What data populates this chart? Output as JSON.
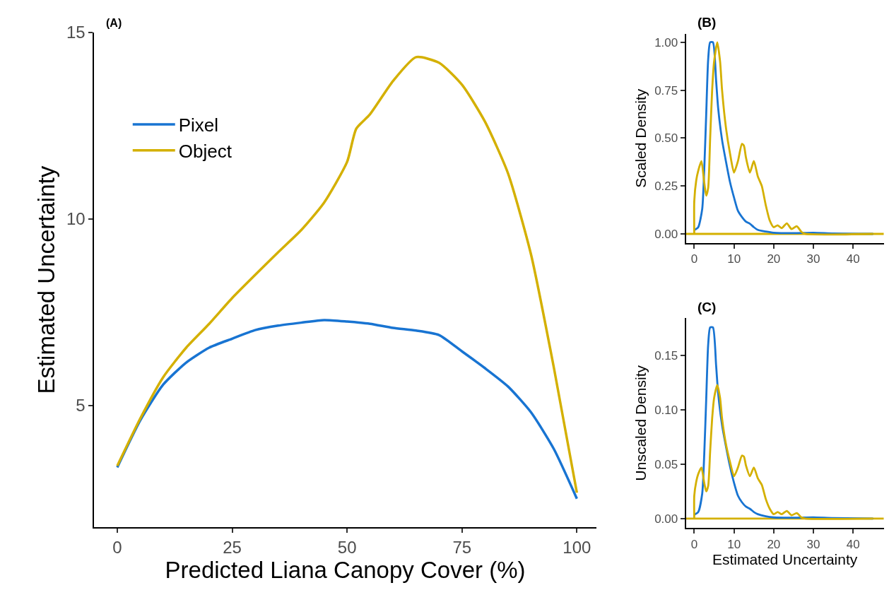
{
  "chart_data": [
    {
      "type": "line",
      "title": "(A)",
      "xlabel": "Predicted Liana Canopy Cover (%)",
      "ylabel": "Estimated Uncertainty",
      "xlim": [
        -5,
        104.2
      ],
      "ylim": [
        1.73,
        15
      ],
      "xticks": [
        0,
        25,
        50,
        75,
        100
      ],
      "yticks": [
        5,
        10,
        15
      ],
      "grid": false,
      "legend": "top left",
      "marker": "none",
      "line_style": "solid",
      "series": [
        {
          "name": "Pixel",
          "color": "#1874d2",
          "x": [
            0,
            5,
            10,
            15,
            20,
            25,
            30,
            35,
            40,
            45,
            50,
            55,
            60,
            65,
            70,
            75,
            80,
            85,
            90,
            95,
            100
          ],
          "values": [
            3.34,
            4.6,
            5.56,
            6.15,
            6.55,
            6.79,
            7.02,
            7.14,
            7.22,
            7.29,
            7.25,
            7.19,
            7.08,
            7.01,
            6.89,
            6.45,
            6.0,
            5.51,
            4.82,
            3.83,
            2.5
          ]
        },
        {
          "name": "Object",
          "color": "#d4b000",
          "x": [
            0,
            5,
            10,
            15,
            20,
            25,
            30,
            35,
            40,
            45,
            50,
            52,
            55,
            60,
            65,
            70,
            75,
            80,
            85,
            90,
            95,
            100
          ],
          "values": [
            3.38,
            4.65,
            5.76,
            6.55,
            7.19,
            7.88,
            8.5,
            9.11,
            9.7,
            10.44,
            11.53,
            12.42,
            12.81,
            13.7,
            14.34,
            14.19,
            13.6,
            12.61,
            11.23,
            9.06,
            6.01,
            2.66
          ]
        }
      ]
    },
    {
      "type": "line",
      "title": "(B)",
      "ylabel": "Scaled Density",
      "xlim": [
        -2.1,
        47.7
      ],
      "ylim": [
        -0.047,
        1.045
      ],
      "xticks": [
        0,
        10,
        20,
        30,
        40
      ],
      "yticks": [
        "1.00",
        {
          "value": 0.75,
          "label": "0.75"
        },
        {
          "value": 0.5,
          "label": "0.50"
        },
        {
          "value": 0.25,
          "label": "0.25"
        },
        {
          "value": 0,
          "label": "0.00"
        }
      ],
      "grid": false,
      "marker": "none",
      "line_style": "solid",
      "series": [
        {
          "color": "#1874d2",
          "x": [
            0,
            1,
            2,
            2.5,
            3,
            3.5,
            4,
            4.7,
            5.5,
            6,
            7,
            8,
            9,
            10,
            11,
            12,
            13,
            14,
            15,
            16,
            18,
            20,
            25,
            30,
            35,
            45
          ],
          "values": [
            0.02,
            0.035,
            0.13,
            0.33,
            0.62,
            0.91,
            1.0,
            1.0,
            0.8,
            0.66,
            0.49,
            0.375,
            0.27,
            0.19,
            0.12,
            0.088,
            0.064,
            0.053,
            0.035,
            0.021,
            0.012,
            0.006,
            0.004,
            0.006,
            0.002,
            0
          ]
        },
        {
          "color": "#d4b000",
          "x": [
            0,
            0,
            0.5,
            1,
            1.8,
            2.5,
            3,
            3.5,
            4,
            4.5,
            5,
            5.8,
            6.5,
            7,
            8,
            9,
            10,
            11,
            12,
            12.5,
            13,
            14,
            15,
            16,
            17,
            18,
            19,
            20,
            21,
            22,
            23.3,
            24.5,
            25.8,
            27,
            28,
            45
          ],
          "values": [
            0,
            0.17,
            0.28,
            0.33,
            0.38,
            0.27,
            0.2,
            0.24,
            0.5,
            0.75,
            0.9,
            1.0,
            0.9,
            0.75,
            0.55,
            0.42,
            0.32,
            0.38,
            0.47,
            0.46,
            0.4,
            0.32,
            0.38,
            0.3,
            0.25,
            0.15,
            0.07,
            0.035,
            0.045,
            0.03,
            0.055,
            0.025,
            0.04,
            0.01,
            0,
            0
          ]
        }
      ],
      "ref_lines": [
        {
          "axis": "y",
          "value": 0,
          "color": "#d4b000"
        }
      ]
    },
    {
      "type": "line",
      "title": "(C)",
      "xlabel": "Estimated Uncertainty",
      "ylabel": "Unscaled Density",
      "xlim": [
        -2.1,
        47.7
      ],
      "ylim": [
        -0.0087,
        0.1845
      ],
      "xticks": [
        0,
        10,
        20,
        30,
        40
      ],
      "yticks": [
        {
          "value": 0,
          "label": "0.00"
        },
        0.05,
        {
          "value": 0.1,
          "label": "0.10"
        },
        0.15
      ],
      "grid": false,
      "marker": "none",
      "line_style": "solid",
      "series": [
        {
          "color": "#1874d2",
          "x": [
            0,
            1,
            2,
            2.5,
            3,
            3.5,
            4,
            4.7,
            5.5,
            6,
            7,
            8,
            9,
            10,
            11,
            12,
            13,
            14,
            15,
            16,
            18,
            20,
            25,
            30,
            35,
            45
          ],
          "values": [
            0.0035,
            0.006,
            0.023,
            0.058,
            0.109,
            0.16,
            0.176,
            0.176,
            0.141,
            0.116,
            0.086,
            0.066,
            0.048,
            0.033,
            0.021,
            0.015,
            0.011,
            0.009,
            0.006,
            0.004,
            0.002,
            0.001,
            0.0007,
            0.001,
            0.0004,
            0
          ]
        },
        {
          "color": "#d4b000",
          "x": [
            0,
            0,
            0.5,
            1,
            1.8,
            2.5,
            3,
            3.5,
            4,
            4.5,
            5,
            5.8,
            6.5,
            7,
            8,
            9,
            10,
            11,
            12,
            12.5,
            13,
            14,
            15,
            16,
            17,
            18,
            19,
            20,
            21,
            22,
            23.3,
            24.5,
            25.8,
            27,
            28,
            45
          ],
          "values": [
            0,
            0.021,
            0.034,
            0.041,
            0.047,
            0.033,
            0.025,
            0.03,
            0.062,
            0.092,
            0.111,
            0.123,
            0.111,
            0.092,
            0.068,
            0.052,
            0.039,
            0.047,
            0.058,
            0.057,
            0.049,
            0.039,
            0.047,
            0.037,
            0.031,
            0.018,
            0.009,
            0.004,
            0.006,
            0.004,
            0.007,
            0.003,
            0.005,
            0.001,
            0,
            0
          ]
        }
      ],
      "ref_lines": [
        {
          "axis": "y",
          "value": 0,
          "color": "#d4b000"
        }
      ]
    }
  ]
}
